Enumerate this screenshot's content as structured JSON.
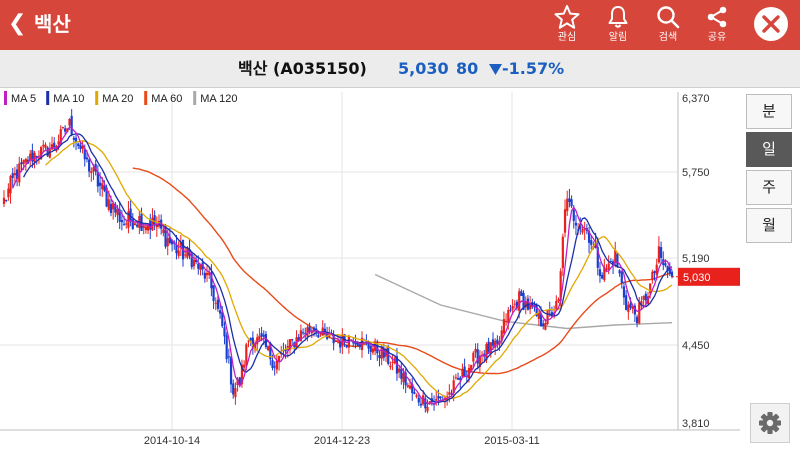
{
  "header": {
    "title": "백산",
    "actions": [
      {
        "label": "관심",
        "icon": "star-icon"
      },
      {
        "label": "알림",
        "icon": "bell-icon"
      },
      {
        "label": "검색",
        "icon": "search-icon"
      },
      {
        "label": "공유",
        "icon": "share-icon"
      }
    ]
  },
  "quote": {
    "name": "백산 (A035150)",
    "price": "5,030",
    "change": "80",
    "change_pct": "-1.57%",
    "direction": "down"
  },
  "periods": {
    "minute": "분",
    "day": "일",
    "week": "주",
    "month": "월",
    "active": "day"
  },
  "colors": {
    "header": "#d6463b",
    "up": "#e8211d",
    "down": "#1a3fd1",
    "ma5": "#c020c0",
    "ma10": "#1a2fa8",
    "ma20": "#e0a800",
    "ma60": "#e84a1a",
    "ma120": "#a8a8a8"
  },
  "chart_data": {
    "type": "candlestick",
    "y_ticks": [
      "6,370",
      "5,750",
      "5,190",
      "4,450",
      "3,810"
    ],
    "x_ticks": [
      "2014-10-14",
      "2014-12-23",
      "2015-03-11"
    ],
    "last_price_label": "5,030",
    "ylim": [
      3810,
      6370
    ],
    "grid": true,
    "legend_position": "top-left",
    "legend": [
      "MA 5",
      "MA 10",
      "MA 20",
      "MA 60",
      "MA 120"
    ],
    "close_path": [
      [
        0,
        5560
      ],
      [
        6,
        5750
      ],
      [
        14,
        5900
      ],
      [
        22,
        5950
      ],
      [
        30,
        6150
      ],
      [
        38,
        5820
      ],
      [
        46,
        5600
      ],
      [
        55,
        5420
      ],
      [
        60,
        5450
      ],
      [
        70,
        5400
      ],
      [
        78,
        5260
      ],
      [
        86,
        5180
      ],
      [
        94,
        5000
      ],
      [
        100,
        4600
      ],
      [
        105,
        4080
      ],
      [
        108,
        4150
      ],
      [
        112,
        4500
      ],
      [
        118,
        4480
      ],
      [
        124,
        4300
      ],
      [
        130,
        4420
      ],
      [
        136,
        4550
      ],
      [
        142,
        4600
      ],
      [
        148,
        4500
      ],
      [
        154,
        4480
      ],
      [
        160,
        4520
      ],
      [
        166,
        4450
      ],
      [
        172,
        4400
      ],
      [
        178,
        4300
      ],
      [
        184,
        4150
      ],
      [
        188,
        4020
      ],
      [
        192,
        4000
      ],
      [
        198,
        3980
      ],
      [
        204,
        4050
      ],
      [
        210,
        4200
      ],
      [
        216,
        4350
      ],
      [
        220,
        4400
      ],
      [
        226,
        4420
      ],
      [
        230,
        4680
      ],
      [
        236,
        4850
      ],
      [
        240,
        4780
      ],
      [
        246,
        4650
      ],
      [
        250,
        4700
      ],
      [
        254,
        4800
      ],
      [
        257,
        5550
      ],
      [
        262,
        5450
      ],
      [
        268,
        5350
      ],
      [
        274,
        5050
      ],
      [
        280,
        5200
      ],
      [
        285,
        4800
      ],
      [
        290,
        4700
      ],
      [
        296,
        4950
      ],
      [
        300,
        5200
      ],
      [
        303,
        5100
      ],
      [
        306,
        5030
      ]
    ],
    "ma120_path": [
      [
        170,
        5050
      ],
      [
        200,
        4790
      ],
      [
        230,
        4650
      ],
      [
        258,
        4590
      ],
      [
        280,
        4620
      ],
      [
        306,
        4640
      ]
    ],
    "note": "x values are trading days from the first visible session"
  }
}
